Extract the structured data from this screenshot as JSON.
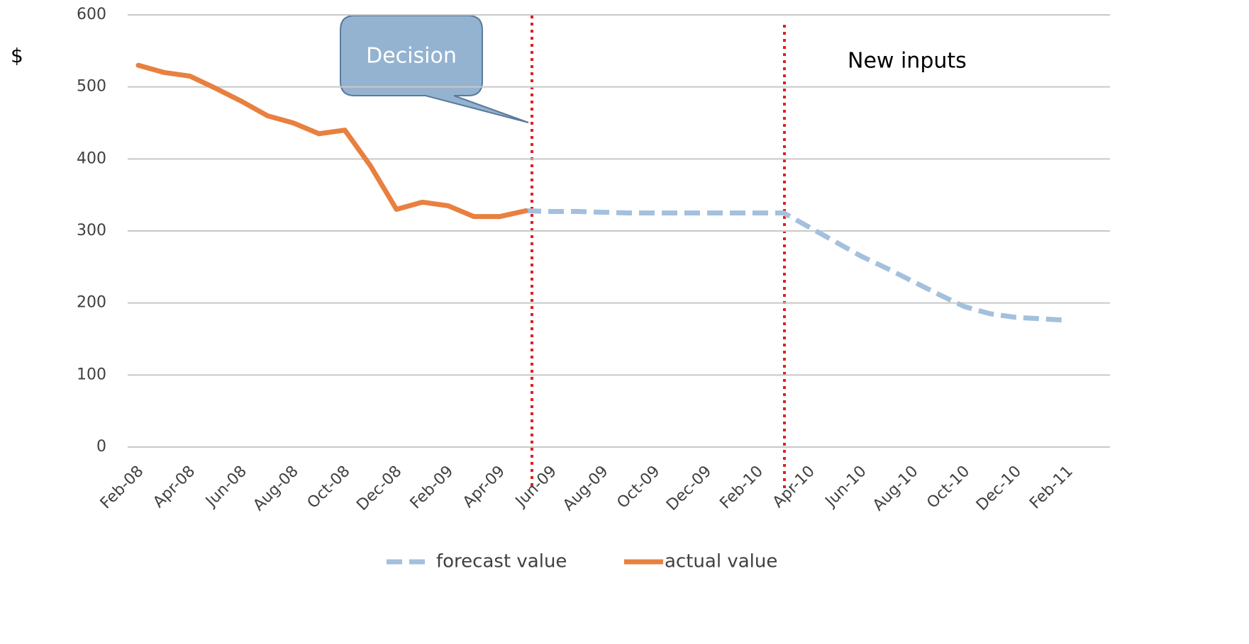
{
  "chart_data": {
    "type": "line",
    "y_label": "$",
    "annotations": [
      "Decision",
      "New inputs"
    ],
    "categories": [
      "Feb-08",
      null,
      "Apr-08",
      null,
      "Jun-08",
      null,
      "Aug-08",
      null,
      "Oct-08",
      null,
      "Dec-08",
      null,
      "Feb-09",
      null,
      "Apr-09",
      null,
      "Jun-09",
      null,
      "Aug-09",
      null,
      "Oct-09",
      null,
      "Dec-09",
      null,
      "Feb-10",
      null,
      "Apr-10",
      null,
      "Jun-10",
      null,
      "Aug-10",
      null,
      "Oct-10",
      null,
      "Dec-10",
      null,
      "Feb-11"
    ],
    "series": [
      {
        "name": "forecast value",
        "color": "#a3c0dd",
        "dashed": true,
        "values": [
          null,
          null,
          null,
          null,
          null,
          null,
          null,
          null,
          null,
          null,
          null,
          null,
          null,
          null,
          null,
          328,
          327,
          327,
          326,
          325,
          325,
          325,
          325,
          325,
          325,
          325,
          305,
          285,
          265,
          248,
          230,
          212,
          195,
          185,
          180,
          178,
          176
        ]
      },
      {
        "name": "actual value",
        "color": "#e8803f",
        "dashed": false,
        "values": [
          530,
          520,
          515,
          498,
          480,
          460,
          450,
          435,
          440,
          390,
          330,
          340,
          335,
          320,
          320,
          328,
          null,
          null,
          null,
          null,
          null,
          null,
          null,
          null,
          null,
          null,
          null,
          null,
          null,
          null,
          null,
          null,
          null,
          null,
          null,
          null,
          null
        ]
      }
    ],
    "ylim": [
      0,
      600
    ],
    "yticks": [
      0,
      100,
      200,
      300,
      400,
      500,
      600
    ],
    "grid": true
  }
}
